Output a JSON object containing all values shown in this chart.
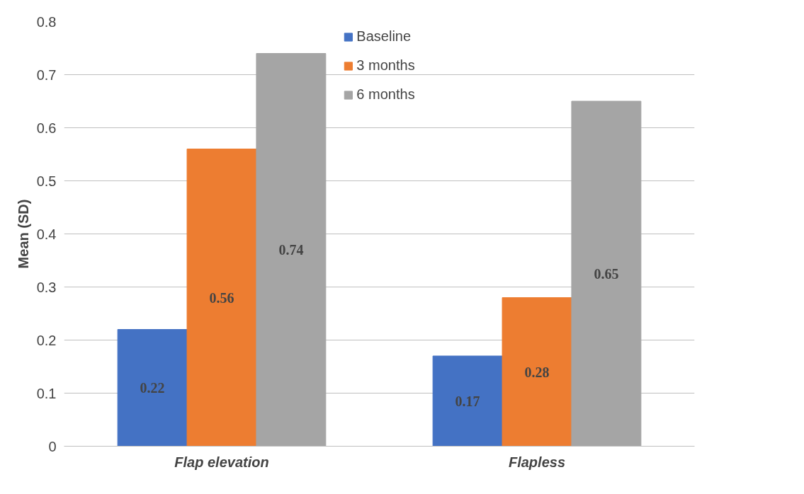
{
  "chart_data": {
    "type": "bar",
    "ylabel": "Mean (SD)",
    "categories": [
      "Flap elevation",
      "Flapless"
    ],
    "series": [
      {
        "name": "Baseline",
        "color": "#4472c4",
        "values": [
          0.22,
          0.17
        ]
      },
      {
        "name": "3 months",
        "color": "#ed7d31",
        "values": [
          0.56,
          0.28
        ]
      },
      {
        "name": "6 months",
        "color": "#a5a5a5",
        "values": [
          0.74,
          0.65
        ]
      }
    ],
    "ylim": [
      0,
      0.8
    ],
    "yticks": [
      0,
      0.1,
      0.2,
      0.3,
      0.4,
      0.5,
      0.6,
      0.7,
      0.8
    ],
    "grid": "y",
    "legend": "top",
    "data_labels": true
  }
}
